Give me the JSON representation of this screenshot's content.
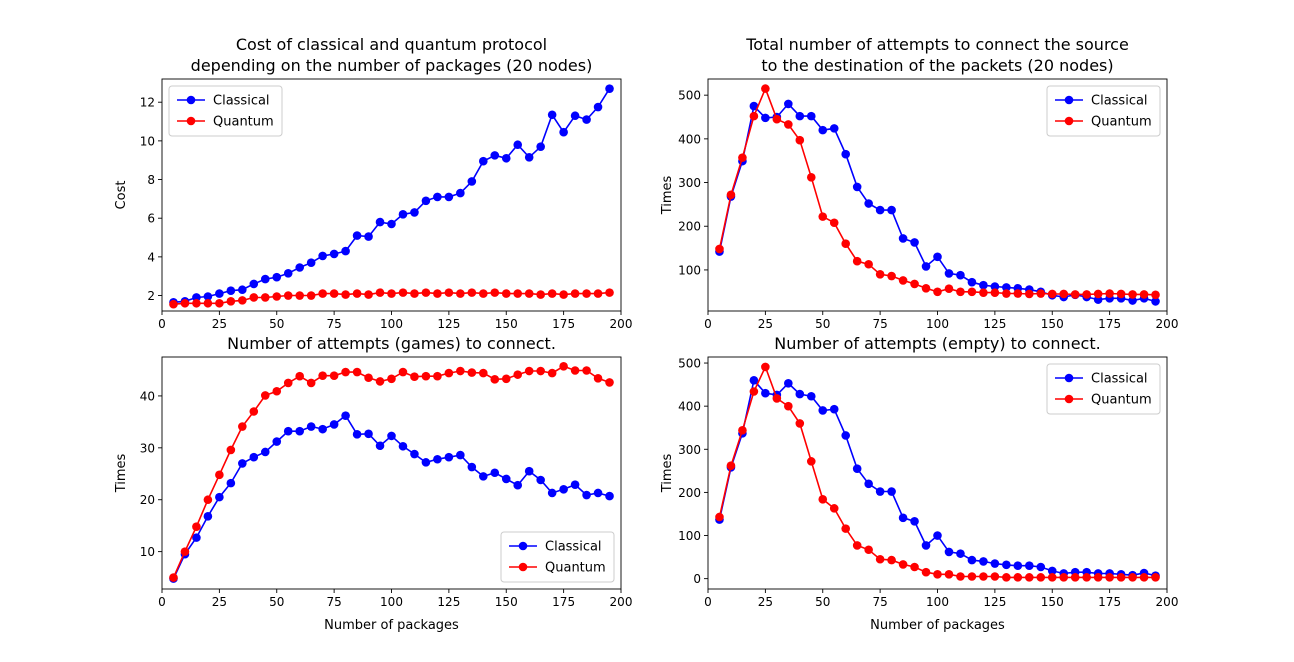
{
  "colors": {
    "classical": "#0000ff",
    "quantum": "#ff0000"
  },
  "chart_data": [
    {
      "type": "line",
      "title": "Cost of classical and quantum protocol\ndepending on the number of packages (20 nodes)",
      "xlabel": "",
      "ylabel": "Cost",
      "xlim": [
        0,
        200
      ],
      "ylim": [
        1.2,
        13.2
      ],
      "xticks": [
        0,
        25,
        50,
        75,
        100,
        125,
        150,
        175,
        200
      ],
      "yticks": [
        2,
        4,
        6,
        8,
        10,
        12
      ],
      "legend": "top-left",
      "x": [
        5,
        10,
        15,
        20,
        25,
        30,
        35,
        40,
        45,
        50,
        55,
        60,
        65,
        70,
        75,
        80,
        85,
        90,
        95,
        100,
        105,
        110,
        115,
        120,
        125,
        130,
        135,
        140,
        145,
        150,
        155,
        160,
        165,
        170,
        175,
        180,
        185,
        190,
        195
      ],
      "series": [
        {
          "name": "Classical",
          "color": "#0000ff",
          "values": [
            1.65,
            1.7,
            1.9,
            1.95,
            2.1,
            2.25,
            2.3,
            2.6,
            2.85,
            2.95,
            3.15,
            3.45,
            3.7,
            4.05,
            4.15,
            4.3,
            5.1,
            5.05,
            5.8,
            5.7,
            6.2,
            6.3,
            6.9,
            7.1,
            7.1,
            7.3,
            7.9,
            8.95,
            9.25,
            9.1,
            9.8,
            9.15,
            9.7,
            11.35,
            10.45,
            11.3,
            11.1,
            11.75,
            12.7
          ]
        },
        {
          "name": "Quantum",
          "color": "#ff0000",
          "values": [
            1.55,
            1.6,
            1.6,
            1.6,
            1.6,
            1.7,
            1.75,
            1.9,
            1.9,
            1.95,
            2.0,
            2.0,
            2.0,
            2.1,
            2.1,
            2.05,
            2.1,
            2.05,
            2.15,
            2.1,
            2.15,
            2.1,
            2.15,
            2.1,
            2.15,
            2.1,
            2.15,
            2.1,
            2.15,
            2.1,
            2.1,
            2.1,
            2.05,
            2.1,
            2.05,
            2.1,
            2.1,
            2.1,
            2.15
          ]
        }
      ]
    },
    {
      "type": "line",
      "title": "Total number of attempts to connect the source\nto the destination of the packets (20 nodes)",
      "xlabel": "",
      "ylabel": "Times",
      "xlim": [
        0,
        200
      ],
      "ylim": [
        6,
        537
      ],
      "xticks": [
        0,
        25,
        50,
        75,
        100,
        125,
        150,
        175,
        200
      ],
      "yticks": [
        100,
        200,
        300,
        400,
        500
      ],
      "legend": "top-right",
      "x": [
        5,
        10,
        15,
        20,
        25,
        30,
        35,
        40,
        45,
        50,
        55,
        60,
        65,
        70,
        75,
        80,
        85,
        90,
        95,
        100,
        105,
        110,
        115,
        120,
        125,
        130,
        135,
        140,
        145,
        150,
        155,
        160,
        165,
        170,
        175,
        180,
        185,
        190,
        195
      ],
      "series": [
        {
          "name": "Classical",
          "color": "#0000ff",
          "values": [
            142,
            268,
            349,
            475,
            448,
            450,
            480,
            452,
            452,
            420,
            424,
            365,
            290,
            252,
            237,
            237,
            172,
            163,
            108,
            130,
            92,
            88,
            72,
            65,
            62,
            60,
            58,
            55,
            50,
            42,
            38,
            43,
            38,
            32,
            35,
            35,
            30,
            35,
            28
          ]
        },
        {
          "name": "Quantum",
          "color": "#ff0000",
          "values": [
            148,
            272,
            357,
            452,
            515,
            445,
            433,
            397,
            312,
            222,
            208,
            160,
            120,
            113,
            90,
            86,
            76,
            68,
            58,
            50,
            57,
            50,
            50,
            48,
            48,
            46,
            46,
            45,
            46,
            45,
            45,
            44,
            44,
            45,
            46,
            45,
            44,
            44,
            43
          ]
        }
      ]
    },
    {
      "type": "line",
      "title": "Number of attempts (games) to connect.",
      "xlabel": "Number of packages",
      "ylabel": "Times",
      "xlim": [
        0,
        200
      ],
      "ylim": [
        2.8,
        47.5
      ],
      "xticks": [
        0,
        25,
        50,
        75,
        100,
        125,
        150,
        175,
        200
      ],
      "yticks": [
        10,
        20,
        30,
        40
      ],
      "legend": "bottom-right",
      "x": [
        5,
        10,
        15,
        20,
        25,
        30,
        35,
        40,
        45,
        50,
        55,
        60,
        65,
        70,
        75,
        80,
        85,
        90,
        95,
        100,
        105,
        110,
        115,
        120,
        125,
        130,
        135,
        140,
        145,
        150,
        155,
        160,
        165,
        170,
        175,
        180,
        185,
        190,
        195
      ],
      "series": [
        {
          "name": "Classical",
          "color": "#0000ff",
          "values": [
            4.8,
            9.5,
            12.7,
            16.8,
            20.5,
            23.2,
            27,
            28.2,
            29.2,
            31.2,
            33.2,
            33.2,
            34.1,
            33.6,
            34.5,
            36.2,
            32.6,
            32.7,
            30.4,
            32.3,
            30.3,
            28.8,
            27.2,
            27.8,
            28.2,
            28.6,
            26.3,
            24.5,
            25.2,
            24.0,
            22.8,
            25.5,
            23.8,
            21.3,
            22.0,
            22.9,
            20.9,
            21.3,
            20.7
          ]
        },
        {
          "name": "Quantum",
          "color": "#ff0000",
          "values": [
            5.0,
            10.0,
            14.8,
            20.0,
            24.8,
            29.6,
            34.1,
            37.0,
            40.1,
            40.9,
            42.5,
            43.8,
            42.5,
            43.9,
            43.9,
            44.6,
            44.6,
            43.5,
            42.8,
            43.3,
            44.6,
            43.7,
            43.8,
            43.8,
            44.4,
            44.8,
            44.5,
            44.4,
            43.2,
            43.3,
            44.1,
            44.8,
            44.8,
            44.4,
            45.7,
            44.9,
            44.9,
            43.4,
            42.6
          ]
        }
      ]
    },
    {
      "type": "line",
      "title": "Number of attempts (empty) to connect.",
      "xlabel": "Number of packages",
      "ylabel": "Times",
      "xlim": [
        0,
        200
      ],
      "ylim": [
        -24,
        514
      ],
      "xticks": [
        0,
        25,
        50,
        75,
        100,
        125,
        150,
        175,
        200
      ],
      "yticks": [
        0,
        100,
        200,
        300,
        400,
        500
      ],
      "legend": "top-right",
      "x": [
        5,
        10,
        15,
        20,
        25,
        30,
        35,
        40,
        45,
        50,
        55,
        60,
        65,
        70,
        75,
        80,
        85,
        90,
        95,
        100,
        105,
        110,
        115,
        120,
        125,
        130,
        135,
        140,
        145,
        150,
        155,
        160,
        165,
        170,
        175,
        180,
        185,
        190,
        195
      ],
      "series": [
        {
          "name": "Classical",
          "color": "#0000ff",
          "values": [
            137,
            258,
            337,
            460,
            430,
            426,
            453,
            428,
            423,
            390,
            393,
            332,
            255,
            220,
            202,
            202,
            141,
            133,
            77,
            100,
            62,
            58,
            43,
            40,
            35,
            32,
            30,
            30,
            27,
            18,
            12,
            15,
            15,
            12,
            12,
            10,
            8,
            13,
            7
          ]
        },
        {
          "name": "Quantum",
          "color": "#ff0000",
          "values": [
            143,
            262,
            344,
            434,
            491,
            418,
            400,
            360,
            272,
            184,
            163,
            116,
            77,
            67,
            45,
            43,
            33,
            27,
            15,
            10,
            10,
            5,
            5,
            5,
            5,
            3,
            3,
            3,
            3,
            3,
            3,
            3,
            3,
            3,
            3,
            3,
            3,
            3,
            3
          ]
        }
      ]
    }
  ]
}
